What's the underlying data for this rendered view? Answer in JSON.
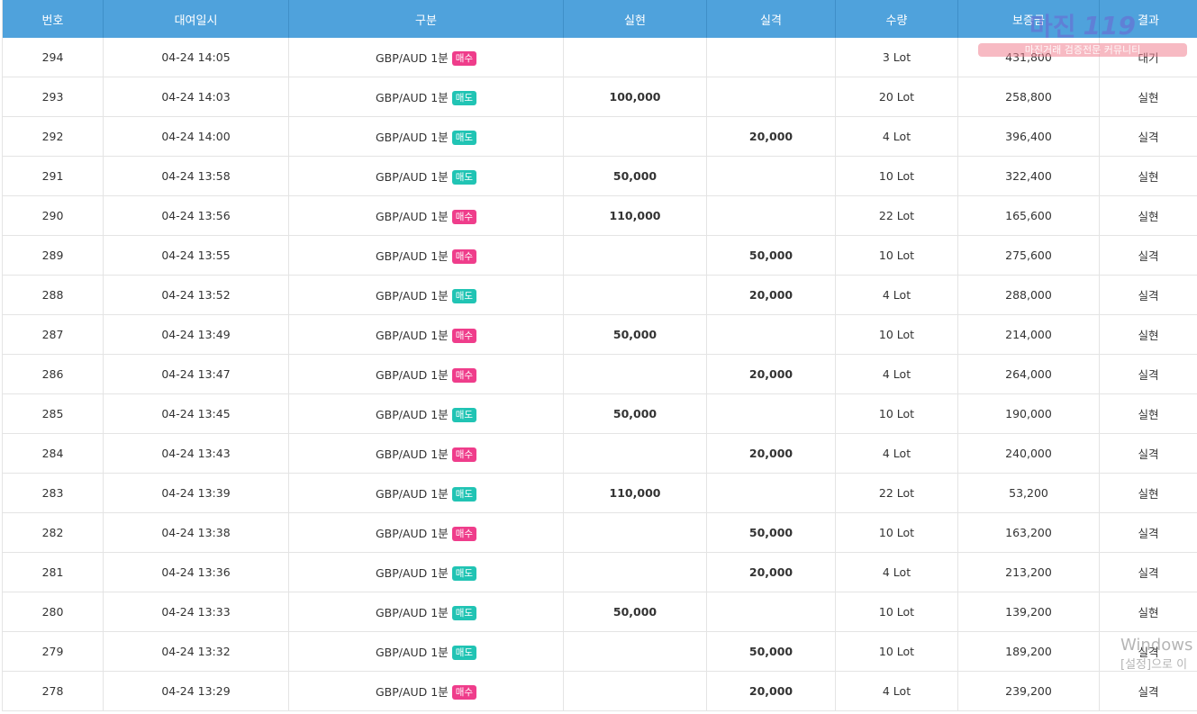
{
  "headers": [
    "번호",
    "대여일시",
    "구분",
    "실현",
    "실격",
    "수량",
    "보증금",
    "결과"
  ],
  "rows": [
    {
      "no": "294",
      "date": "04-24 14:05",
      "symbol": "GBP/AUD 1분",
      "side": "매수",
      "side_type": "buy",
      "profit": "",
      "loss": "",
      "qty": "3 Lot",
      "deposit": "431,800",
      "result": "대기",
      "result_type": "wait"
    },
    {
      "no": "293",
      "date": "04-24 14:03",
      "symbol": "GBP/AUD 1분",
      "side": "매도",
      "side_type": "sell",
      "profit": "100,000",
      "loss": "",
      "qty": "20 Lot",
      "deposit": "258,800",
      "result": "실현",
      "result_type": "profit"
    },
    {
      "no": "292",
      "date": "04-24 14:00",
      "symbol": "GBP/AUD 1분",
      "side": "매도",
      "side_type": "sell",
      "profit": "",
      "loss": "20,000",
      "qty": "4 Lot",
      "deposit": "396,400",
      "result": "실격",
      "result_type": "loss"
    },
    {
      "no": "291",
      "date": "04-24 13:58",
      "symbol": "GBP/AUD 1분",
      "side": "매도",
      "side_type": "sell",
      "profit": "50,000",
      "loss": "",
      "qty": "10 Lot",
      "deposit": "322,400",
      "result": "실현",
      "result_type": "profit"
    },
    {
      "no": "290",
      "date": "04-24 13:56",
      "symbol": "GBP/AUD 1분",
      "side": "매수",
      "side_type": "buy",
      "profit": "110,000",
      "loss": "",
      "qty": "22 Lot",
      "deposit": "165,600",
      "result": "실현",
      "result_type": "profit"
    },
    {
      "no": "289",
      "date": "04-24 13:55",
      "symbol": "GBP/AUD 1분",
      "side": "매수",
      "side_type": "buy",
      "profit": "",
      "loss": "50,000",
      "qty": "10 Lot",
      "deposit": "275,600",
      "result": "실격",
      "result_type": "loss"
    },
    {
      "no": "288",
      "date": "04-24 13:52",
      "symbol": "GBP/AUD 1분",
      "side": "매도",
      "side_type": "sell",
      "profit": "",
      "loss": "20,000",
      "qty": "4 Lot",
      "deposit": "288,000",
      "result": "실격",
      "result_type": "loss"
    },
    {
      "no": "287",
      "date": "04-24 13:49",
      "symbol": "GBP/AUD 1분",
      "side": "매수",
      "side_type": "buy",
      "profit": "50,000",
      "loss": "",
      "qty": "10 Lot",
      "deposit": "214,000",
      "result": "실현",
      "result_type": "profit"
    },
    {
      "no": "286",
      "date": "04-24 13:47",
      "symbol": "GBP/AUD 1분",
      "side": "매수",
      "side_type": "buy",
      "profit": "",
      "loss": "20,000",
      "qty": "4 Lot",
      "deposit": "264,000",
      "result": "실격",
      "result_type": "loss"
    },
    {
      "no": "285",
      "date": "04-24 13:45",
      "symbol": "GBP/AUD 1분",
      "side": "매도",
      "side_type": "sell",
      "profit": "50,000",
      "loss": "",
      "qty": "10 Lot",
      "deposit": "190,000",
      "result": "실현",
      "result_type": "profit"
    },
    {
      "no": "284",
      "date": "04-24 13:43",
      "symbol": "GBP/AUD 1분",
      "side": "매수",
      "side_type": "buy",
      "profit": "",
      "loss": "20,000",
      "qty": "4 Lot",
      "deposit": "240,000",
      "result": "실격",
      "result_type": "loss"
    },
    {
      "no": "283",
      "date": "04-24 13:39",
      "symbol": "GBP/AUD 1분",
      "side": "매도",
      "side_type": "sell",
      "profit": "110,000",
      "loss": "",
      "qty": "22 Lot",
      "deposit": "53,200",
      "result": "실현",
      "result_type": "profit"
    },
    {
      "no": "282",
      "date": "04-24 13:38",
      "symbol": "GBP/AUD 1분",
      "side": "매수",
      "side_type": "buy",
      "profit": "",
      "loss": "50,000",
      "qty": "10 Lot",
      "deposit": "163,200",
      "result": "실격",
      "result_type": "loss"
    },
    {
      "no": "281",
      "date": "04-24 13:36",
      "symbol": "GBP/AUD 1분",
      "side": "매도",
      "side_type": "sell",
      "profit": "",
      "loss": "20,000",
      "qty": "4 Lot",
      "deposit": "213,200",
      "result": "실격",
      "result_type": "loss"
    },
    {
      "no": "280",
      "date": "04-24 13:33",
      "symbol": "GBP/AUD 1분",
      "side": "매도",
      "side_type": "sell",
      "profit": "50,000",
      "loss": "",
      "qty": "10 Lot",
      "deposit": "139,200",
      "result": "실현",
      "result_type": "profit"
    },
    {
      "no": "279",
      "date": "04-24 13:32",
      "symbol": "GBP/AUD 1분",
      "side": "매도",
      "side_type": "sell",
      "profit": "",
      "loss": "50,000",
      "qty": "10 Lot",
      "deposit": "189,200",
      "result": "실격",
      "result_type": "loss"
    },
    {
      "no": "278",
      "date": "04-24 13:29",
      "symbol": "GBP/AUD 1분",
      "side": "매수",
      "side_type": "buy",
      "profit": "",
      "loss": "20,000",
      "qty": "4 Lot",
      "deposit": "239,200",
      "result": "실격",
      "result_type": "loss"
    }
  ],
  "watermark": {
    "brand": "마진",
    "mark": "119",
    "tagline": "마진거래 검증전문 커뮤니티"
  },
  "windows_notice": {
    "line1": "Windows",
    "line2": "[설정]으로 이"
  },
  "colors": {
    "header_bg": "#4fa2dc",
    "buy_badge": "#ef3d8b",
    "sell_badge": "#21c4b4",
    "profit_text": "#5fb8b3",
    "loss_text": "#c8283a",
    "result_profit": "#2c7ab8"
  }
}
